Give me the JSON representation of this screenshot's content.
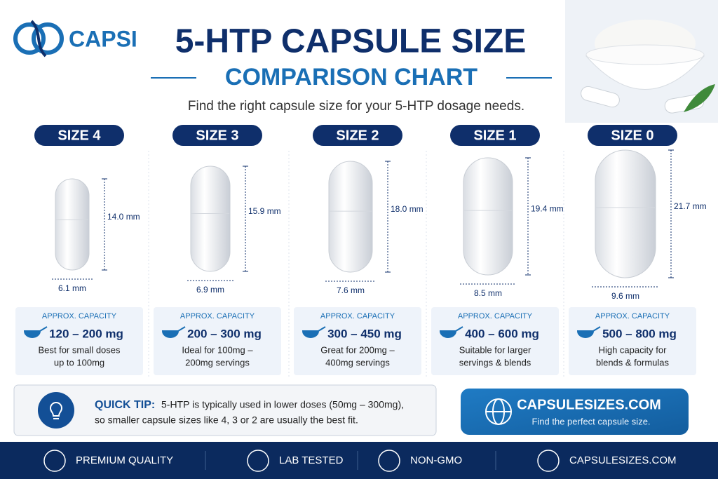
{
  "brand": "CAPSI",
  "header": {
    "title": "5-HTP CAPSULE SIZE",
    "subtitle": "COMPARISON CHART",
    "tagline": "Find the right capsule size for your 5-HTP dosage needs."
  },
  "sizes": [
    {
      "label": "SIZE 4",
      "length": "14.0 mm",
      "diameter": "6.1 mm",
      "capacity_label": "APPROX. CAPACITY",
      "capacity": "120 – 200 mg",
      "note": [
        "Best for small doses",
        "up to 100mg"
      ]
    },
    {
      "label": "SIZE 3",
      "length": "15.9 mm",
      "diameter": "6.9 mm",
      "capacity_label": "APPROX. CAPACITY",
      "capacity": "200 – 300 mg",
      "note": [
        "Ideal for 100mg –",
        "200mg servings"
      ]
    },
    {
      "label": "SIZE 2",
      "length": "18.0 mm",
      "diameter": "7.6 mm",
      "capacity_label": "APPROX. CAPACITY",
      "capacity": "300 – 450 mg",
      "note": [
        "Great for 200mg –",
        "400mg servings"
      ]
    },
    {
      "label": "SIZE 1",
      "length": "19.4 mm",
      "diameter": "8.5 mm",
      "capacity_label": "APPROX. CAPACITY",
      "capacity": "400 – 600 mg",
      "note": [
        "Suitable for larger",
        "servings & blends"
      ]
    },
    {
      "label": "SIZE 0",
      "length": "21.7 mm",
      "diameter": "9.6 mm",
      "capacity_label": "APPROX. CAPACITY",
      "capacity": "500 – 800 mg",
      "note": [
        "High capacity for",
        "blends & formulas"
      ]
    }
  ],
  "tip": {
    "label": "QUICK TIP:",
    "lines": [
      "5-HTP is typically used in lower doses (50mg – 300mg),",
      "so smaller capsule sizes like 4, 3 or 2 are usually the best fit."
    ]
  },
  "cta": {
    "site": "CAPSULESIZES.COM",
    "text": "Find the perfect capsule size."
  },
  "footer": [
    "PREMIUM QUALITY",
    "LAB TESTED",
    "NON-GMO",
    "CAPSULESIZES.COM"
  ]
}
